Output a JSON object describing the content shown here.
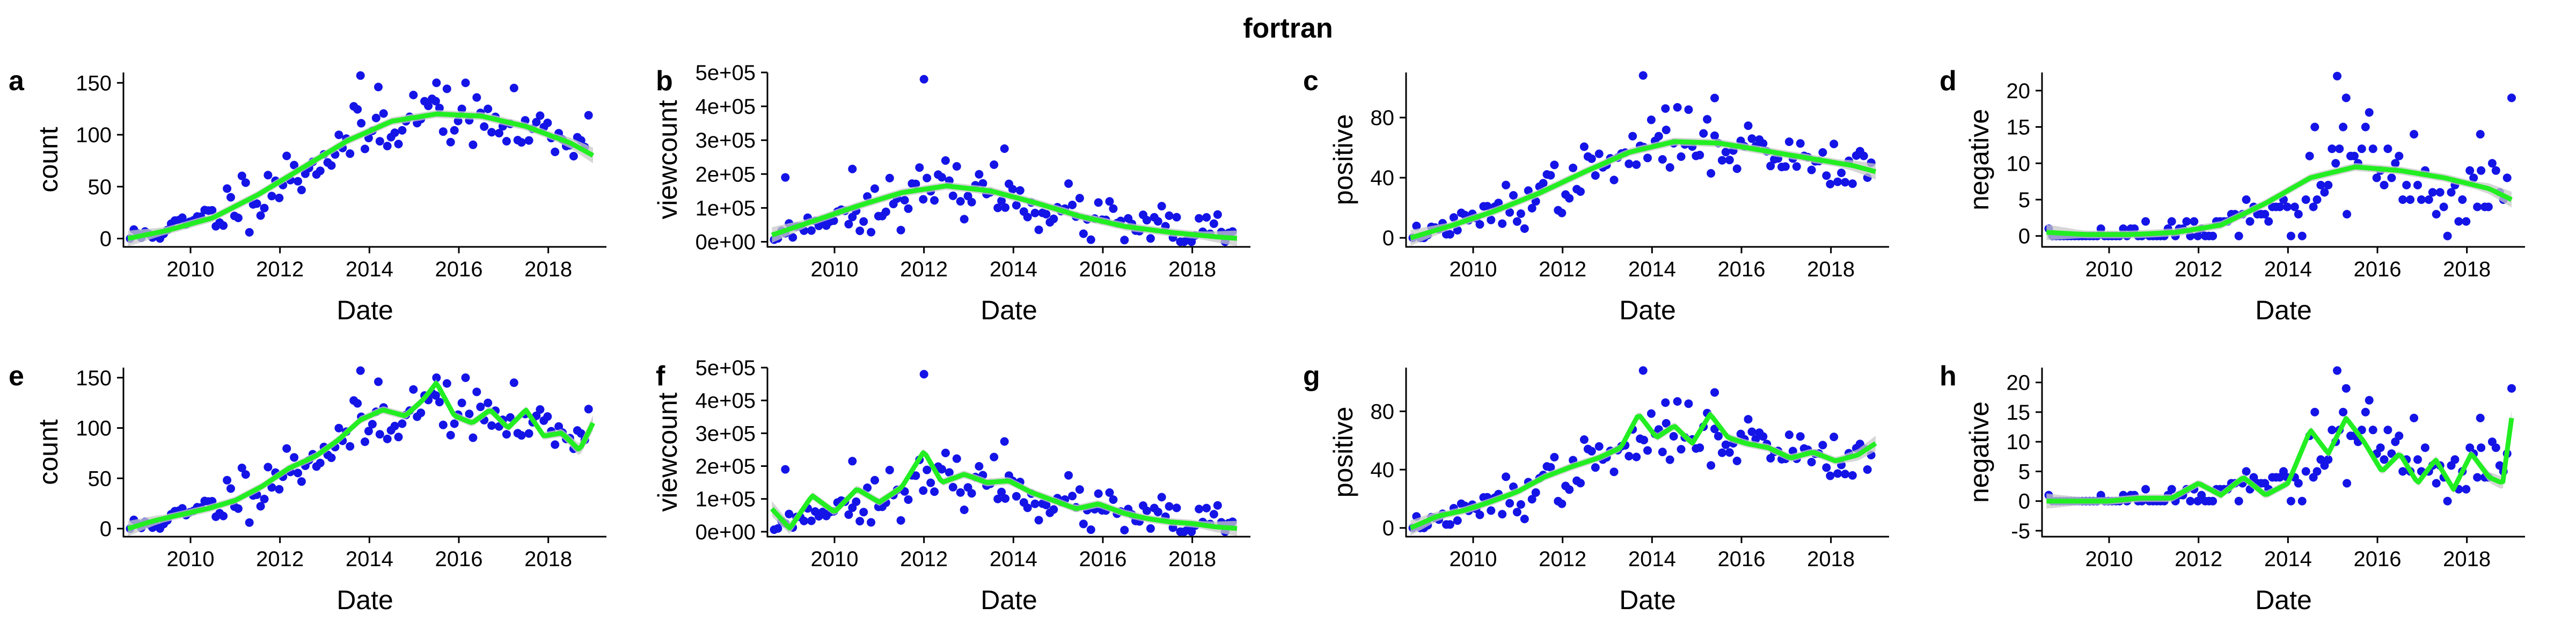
{
  "figure": {
    "title": "fortran"
  },
  "colors": {
    "points": "#1414e6",
    "smooth": "#22ee22",
    "ribbon": "#c8c8c8"
  },
  "chart_data": [
    {
      "id": "a",
      "type": "scatter",
      "xlabel": "Date",
      "ylabel": "count",
      "xlim": [
        2008.5,
        2019.3
      ],
      "ylim": [
        -8,
        160
      ],
      "x_ticks": [
        2010,
        2012,
        2014,
        2016,
        2018
      ],
      "x_tick_labels": [
        "2010",
        "2012",
        "2014",
        "2016",
        "2018"
      ],
      "y_ticks": [
        0,
        50,
        100,
        150
      ],
      "y_tick_labels": [
        "0",
        "50",
        "100",
        "150"
      ],
      "series": [
        {
          "kind": "points",
          "metric": "count"
        },
        {
          "kind": "smooth",
          "method": "loess",
          "x": [
            2008.6,
            2009.5,
            2010.5,
            2011.5,
            2012.5,
            2013.5,
            2014.5,
            2015.5,
            2016.5,
            2017.5,
            2018.5,
            2019.0
          ],
          "y": [
            0,
            8,
            20,
            42,
            68,
            94,
            113,
            120,
            118,
            108,
            92,
            80
          ]
        }
      ]
    },
    {
      "id": "b",
      "type": "scatter",
      "xlabel": "Date",
      "ylabel": "viewcount",
      "xlim": [
        2008.5,
        2019.3
      ],
      "ylim": [
        -15000,
        500000
      ],
      "x_ticks": [
        2010,
        2012,
        2014,
        2016,
        2018
      ],
      "x_tick_labels": [
        "2010",
        "2012",
        "2014",
        "2016",
        "2018"
      ],
      "y_ticks": [
        0,
        100000,
        200000,
        300000,
        400000,
        500000
      ],
      "y_tick_labels": [
        "0e+00",
        "1e+05",
        "2e+05",
        "3e+05",
        "4e+05",
        "5e+05"
      ],
      "series": [
        {
          "kind": "points",
          "metric": "viewcount"
        },
        {
          "kind": "smooth",
          "method": "loess",
          "x": [
            2008.6,
            2009.5,
            2010.5,
            2011.5,
            2012.5,
            2013.5,
            2014.5,
            2015.5,
            2016.5,
            2017.5,
            2018.5,
            2019.0
          ],
          "y": [
            20000,
            60000,
            105000,
            145000,
            165000,
            150000,
            115000,
            75000,
            45000,
            28000,
            15000,
            10000
          ]
        }
      ]
    },
    {
      "id": "c",
      "type": "scatter",
      "xlabel": "Date",
      "ylabel": "positive",
      "xlim": [
        2008.5,
        2019.3
      ],
      "ylim": [
        -6,
        110
      ],
      "x_ticks": [
        2010,
        2012,
        2014,
        2016,
        2018
      ],
      "x_tick_labels": [
        "2010",
        "2012",
        "2014",
        "2016",
        "2018"
      ],
      "y_ticks": [
        0,
        40,
        80
      ],
      "y_tick_labels": [
        "0",
        "40",
        "80"
      ],
      "series": [
        {
          "kind": "points",
          "metric": "positive"
        },
        {
          "kind": "smooth",
          "method": "loess",
          "x": [
            2008.6,
            2009.5,
            2010.5,
            2011.5,
            2012.5,
            2013.5,
            2014.5,
            2015.5,
            2016.5,
            2017.5,
            2018.5,
            2019.0
          ],
          "y": [
            0,
            8,
            18,
            30,
            44,
            57,
            64,
            63,
            58,
            53,
            48,
            44
          ]
        }
      ]
    },
    {
      "id": "d",
      "type": "scatter",
      "xlabel": "Date",
      "ylabel": "negative",
      "xlim": [
        2008.5,
        2019.3
      ],
      "ylim": [
        -1.5,
        22.5
      ],
      "x_ticks": [
        2010,
        2012,
        2014,
        2016,
        2018
      ],
      "x_tick_labels": [
        "2010",
        "2012",
        "2014",
        "2016",
        "2018"
      ],
      "y_ticks": [
        0,
        5,
        10,
        15,
        20
      ],
      "y_tick_labels": [
        "0",
        "5",
        "10",
        "15",
        "20"
      ],
      "series": [
        {
          "kind": "points",
          "metric": "negative"
        },
        {
          "kind": "smooth",
          "method": "loess",
          "x": [
            2008.6,
            2009.5,
            2010.5,
            2011.5,
            2012.5,
            2013.5,
            2014.5,
            2015.5,
            2016.5,
            2017.5,
            2018.5,
            2019.0
          ],
          "y": [
            0.5,
            0.2,
            0.2,
            0.5,
            1.5,
            4.5,
            8,
            9.5,
            9,
            8,
            6.5,
            5
          ]
        }
      ]
    },
    {
      "id": "e",
      "type": "scatter",
      "xlabel": "Date",
      "ylabel": "count",
      "xlim": [
        2008.5,
        2019.3
      ],
      "ylim": [
        -8,
        160
      ],
      "x_ticks": [
        2010,
        2012,
        2014,
        2016,
        2018
      ],
      "x_tick_labels": [
        "2010",
        "2012",
        "2014",
        "2016",
        "2018"
      ],
      "y_ticks": [
        0,
        50,
        100,
        150
      ],
      "y_tick_labels": [
        "0",
        "50",
        "100",
        "150"
      ],
      "series": [
        {
          "kind": "points",
          "metric": "count"
        },
        {
          "kind": "smooth",
          "method": "gam",
          "x": [
            2008.6,
            2009.2,
            2009.8,
            2010.4,
            2011.0,
            2011.6,
            2012.2,
            2012.8,
            2013.3,
            2013.8,
            2014.3,
            2014.8,
            2015.2,
            2015.5,
            2015.9,
            2016.3,
            2016.7,
            2017.1,
            2017.5,
            2017.9,
            2018.3,
            2018.7,
            2019.0
          ],
          "y": [
            0,
            8,
            14,
            20,
            28,
            42,
            60,
            72,
            88,
            108,
            118,
            112,
            128,
            145,
            112,
            105,
            118,
            100,
            118,
            92,
            95,
            78,
            105
          ]
        }
      ]
    },
    {
      "id": "f",
      "type": "scatter",
      "xlabel": "Date",
      "ylabel": "viewcount",
      "xlim": [
        2008.5,
        2019.3
      ],
      "ylim": [
        -15000,
        500000
      ],
      "x_ticks": [
        2010,
        2012,
        2014,
        2016,
        2018
      ],
      "x_tick_labels": [
        "2010",
        "2012",
        "2014",
        "2016",
        "2018"
      ],
      "y_ticks": [
        0,
        100000,
        200000,
        300000,
        400000,
        500000
      ],
      "y_tick_labels": [
        "0e+00",
        "1e+05",
        "2e+05",
        "3e+05",
        "4e+05",
        "5e+05"
      ],
      "series": [
        {
          "kind": "points",
          "metric": "viewcount"
        },
        {
          "kind": "smooth",
          "method": "gam",
          "x": [
            2008.6,
            2009.0,
            2009.5,
            2010.0,
            2010.5,
            2011.0,
            2011.5,
            2012.0,
            2012.4,
            2012.9,
            2013.4,
            2013.9,
            2014.4,
            2014.9,
            2015.4,
            2015.9,
            2016.5,
            2017.0,
            2017.5,
            2018.0,
            2018.5,
            2019.0
          ],
          "y": [
            70000,
            10000,
            110000,
            60000,
            130000,
            90000,
            135000,
            245000,
            150000,
            175000,
            150000,
            155000,
            120000,
            95000,
            70000,
            85000,
            55000,
            40000,
            30000,
            25000,
            15000,
            10000
          ]
        }
      ]
    },
    {
      "id": "g",
      "type": "scatter",
      "xlabel": "Date",
      "ylabel": "positive",
      "xlim": [
        2008.5,
        2019.3
      ],
      "ylim": [
        -6,
        110
      ],
      "x_ticks": [
        2010,
        2012,
        2014,
        2016,
        2018
      ],
      "x_tick_labels": [
        "2010",
        "2012",
        "2014",
        "2016",
        "2018"
      ],
      "y_ticks": [
        0,
        40,
        80
      ],
      "y_tick_labels": [
        "0",
        "40",
        "80"
      ],
      "series": [
        {
          "kind": "points",
          "metric": "positive"
        },
        {
          "kind": "smooth",
          "method": "gam",
          "x": [
            2008.6,
            2009.2,
            2009.8,
            2010.4,
            2011.0,
            2011.6,
            2012.2,
            2012.8,
            2013.3,
            2013.7,
            2014.1,
            2014.5,
            2014.9,
            2015.3,
            2015.7,
            2016.1,
            2016.6,
            2017.1,
            2017.6,
            2018.1,
            2018.6,
            2019.0
          ],
          "y": [
            0,
            8,
            12,
            18,
            25,
            35,
            42,
            48,
            55,
            78,
            62,
            70,
            58,
            78,
            62,
            58,
            55,
            48,
            52,
            46,
            50,
            58
          ]
        }
      ]
    },
    {
      "id": "h",
      "type": "scatter",
      "xlabel": "Date",
      "ylabel": "negative",
      "xlim": [
        2008.5,
        2019.3
      ],
      "ylim": [
        -6,
        22.5
      ],
      "x_ticks": [
        2010,
        2012,
        2014,
        2016,
        2018
      ],
      "x_tick_labels": [
        "2010",
        "2012",
        "2014",
        "2016",
        "2018"
      ],
      "y_ticks": [
        -5,
        0,
        5,
        10,
        15,
        20
      ],
      "y_tick_labels": [
        "-5",
        "0",
        "5",
        "10",
        "15",
        "20"
      ],
      "series": [
        {
          "kind": "points",
          "metric": "negative"
        },
        {
          "kind": "smooth",
          "method": "gam",
          "x": [
            2008.6,
            2009.3,
            2010.0,
            2010.7,
            2011.4,
            2012.0,
            2012.5,
            2013.0,
            2013.5,
            2014.0,
            2014.5,
            2014.9,
            2015.3,
            2015.7,
            2016.1,
            2016.5,
            2016.9,
            2017.3,
            2017.7,
            2018.1,
            2018.5,
            2018.8,
            2019.0
          ],
          "y": [
            0,
            0,
            0,
            0.5,
            0.5,
            3,
            1,
            4,
            1,
            3,
            12,
            8,
            14,
            10,
            5,
            8,
            3,
            7,
            2,
            8,
            4,
            3,
            14
          ]
        }
      ]
    }
  ]
}
